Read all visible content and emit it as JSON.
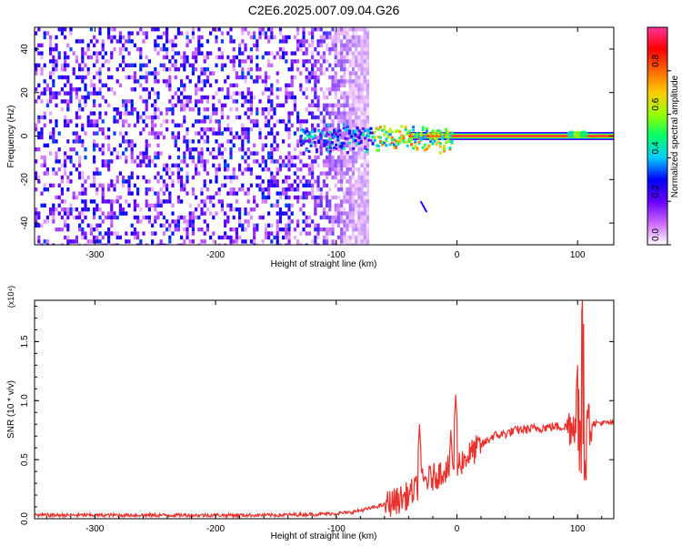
{
  "title": "C2E6.2025.007.09.04.G26",
  "chart_data": [
    {
      "type": "heatmap",
      "xlabel": "Height of straight line (km)",
      "ylabel": "Frequency (Hz)",
      "xlim": [
        -350,
        130
      ],
      "ylim": [
        -50,
        50
      ],
      "xticks": [
        -300,
        -200,
        -100,
        0,
        100
      ],
      "yticks": [
        -40,
        -20,
        0,
        20,
        40
      ],
      "xtick_labels": [
        "-300",
        "-200",
        "-100",
        "0",
        "100"
      ],
      "ytick_labels": [
        "-40",
        "-20",
        "0",
        "20",
        "40"
      ],
      "colorbar": {
        "label": "Normalized spectral amplitude",
        "range": [
          0,
          1
        ],
        "ticks": [
          0.0,
          0.2,
          0.4,
          0.6,
          0.8
        ],
        "tick_labels": [
          "0.0",
          "0.2",
          "0.4",
          "0.6",
          "0.8"
        ],
        "colors": [
          "#ffffff",
          "#cc66ff",
          "#6600ff",
          "#0000ff",
          "#00ccff",
          "#00ff66",
          "#99ff00",
          "#ffcc00",
          "#ff6600",
          "#ff0000",
          "#ff3399"
        ]
      },
      "features": {
        "noise_region_x": [
          -350,
          -80
        ],
        "carrier_line": {
          "x": [
            -100,
            130
          ],
          "frequency": 0,
          "amplitude": 0.95
        },
        "secondary_traces": [
          {
            "x": [
              -30,
              -25
            ],
            "frequency": [
              -30,
              -35
            ]
          }
        ]
      }
    },
    {
      "type": "line",
      "xlabel": "Height of straight line (km)",
      "ylabel": "SNR (10 * v/v)",
      "y_multiplier": "(x10⁴)",
      "xlim": [
        -350,
        130
      ],
      "ylim": [
        0,
        1.85
      ],
      "xticks": [
        -300,
        -200,
        -100,
        0,
        100
      ],
      "yticks": [
        0.0,
        0.5,
        1.0,
        1.5
      ],
      "xtick_labels": [
        "-300",
        "-200",
        "-100",
        "0",
        "100"
      ],
      "ytick_labels": [
        "0.0",
        "0.5",
        "1.0",
        "1.5"
      ],
      "color": "#e8322d",
      "series": [
        {
          "x": [
            -350,
            -300,
            -250,
            -200,
            -150,
            -110,
            -90,
            -75,
            -60,
            -50,
            -40,
            -35,
            -30,
            -25,
            -20,
            -15,
            -10,
            -5,
            0,
            5,
            10,
            15,
            20,
            25,
            30,
            40,
            50,
            60,
            70,
            80,
            90,
            95,
            100,
            105,
            110,
            115,
            120,
            130
          ],
          "y": [
            0.03,
            0.03,
            0.03,
            0.03,
            0.03,
            0.04,
            0.05,
            0.08,
            0.12,
            0.15,
            0.2,
            0.24,
            0.3,
            0.33,
            0.35,
            0.38,
            0.42,
            0.44,
            0.45,
            0.5,
            0.54,
            0.58,
            0.62,
            0.66,
            0.7,
            0.72,
            0.75,
            0.76,
            0.77,
            0.78,
            0.78,
            0.8,
            0.8,
            0.82,
            0.8,
            0.81,
            0.81,
            0.81
          ]
        }
      ],
      "spikes": [
        {
          "x": -31,
          "y": 0.8
        },
        {
          "x": -5,
          "y": 0.75
        },
        {
          "x": -1,
          "y": 1.05
        },
        {
          "x": 100,
          "y": 1.3
        },
        {
          "x": 104,
          "y": 1.85
        },
        {
          "x": 106,
          "y": 1.15
        },
        {
          "x": 108,
          "y": 0.92
        }
      ]
    }
  ]
}
